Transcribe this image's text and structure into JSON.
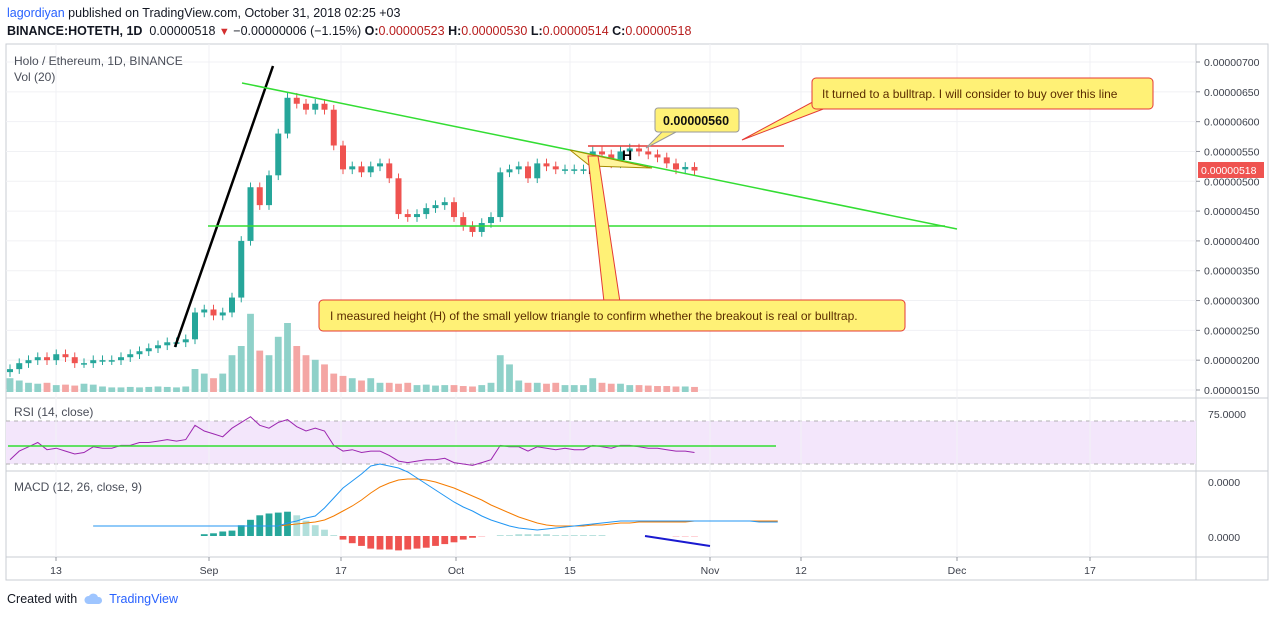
{
  "header": {
    "user": "lagordiyan",
    "published_text": "published on TradingView.com, October 31, 2018 02:25 +03"
  },
  "quote": {
    "symbol": "BINANCE:HOTETH, 1D",
    "last": "0.00000518",
    "arrow": "▼",
    "change": "−0.00000006 (−1.15%)",
    "o_label": "O:",
    "o": "0.00000523",
    "h_label": "H:",
    "h": "0.00000530",
    "l_label": "L:",
    "l": "0.00000514",
    "c_label": "C:",
    "c": "0.00000518"
  },
  "legend": {
    "title": "Holo / Ethereum, 1D, BINANCE",
    "vol": "Vol (20)",
    "rsi": "RSI (14, close)",
    "macd": "MACD (12, 26, close, 9)"
  },
  "annotations": {
    "top_right": "It turned to a bulltrap. I will consider to buy over this line",
    "price_flag": "0.00000560",
    "bottom": "I measured height (H) of the small yellow triangle to confirm whether the breakout is real or bulltrap."
  },
  "price_tag": "0.00000518",
  "footer": {
    "created_with": "Created with",
    "brand": "TradingView"
  },
  "colors": {
    "up": "#26a69a",
    "down": "#ef5350",
    "trend": "#33dd33",
    "rsi": "#9c27b0"
  },
  "chart_data": {
    "type": "line",
    "title": "Holo / Ethereum, 1D, BINANCE",
    "x_ticks": [
      "13",
      "Sep",
      "17",
      "Oct",
      "15",
      "Nov",
      "12",
      "Dec",
      "17"
    ],
    "price_axis_labels": [
      "0.00000700",
      "0.00000650",
      "0.00000600",
      "0.00000550",
      "0.00000500",
      "0.00000450",
      "0.00000400",
      "0.00000350",
      "0.00000300",
      "0.00000250",
      "0.00000200",
      "0.00000150"
    ],
    "price_ylim": [
      1.45e-06,
      7.2e-06
    ],
    "rsi_axis_labels": [
      "75.0000"
    ],
    "macd_axis_labels": [
      "0.0000",
      "0.0000"
    ],
    "close": [
      1.85,
      1.95,
      2.0,
      2.05,
      2.0,
      2.1,
      2.05,
      1.95,
      1.95,
      2.0,
      2.0,
      2.0,
      2.05,
      2.1,
      2.15,
      2.2,
      2.25,
      2.3,
      2.3,
      2.35,
      2.8,
      2.85,
      2.75,
      2.8,
      3.05,
      4.0,
      4.9,
      4.6,
      5.1,
      5.8,
      6.4,
      6.3,
      6.2,
      6.3,
      6.2,
      5.6,
      5.2,
      5.25,
      5.15,
      5.25,
      5.3,
      5.05,
      4.45,
      4.4,
      4.45,
      4.55,
      4.6,
      4.65,
      4.4,
      4.25,
      4.15,
      4.3,
      4.4,
      5.15,
      5.2,
      5.25,
      5.05,
      5.3,
      5.25,
      5.2,
      5.2,
      5.2,
      5.2,
      5.5,
      5.45,
      5.3,
      5.5,
      5.55,
      5.5,
      5.45,
      5.4,
      5.3,
      5.2,
      5.24,
      5.18
    ],
    "volume": [
      3,
      2.5,
      2,
      1.8,
      2,
      1.5,
      1.6,
      1.4,
      1.8,
      1.6,
      1.2,
      1.0,
      1.0,
      1.1,
      1.0,
      1.1,
      1.2,
      1.1,
      1.0,
      1.2,
      5,
      4,
      3,
      4,
      8,
      10,
      17,
      9,
      8,
      12,
      15,
      10,
      8,
      7,
      6,
      4,
      3.5,
      3,
      2.5,
      3,
      2,
      2,
      1.8,
      2,
      1.5,
      1.6,
      1.4,
      1.5,
      1.5,
      1.3,
      1.2,
      1.5,
      2.0,
      8,
      6,
      2.5,
      2,
      2,
      1.8,
      2,
      1.5,
      1.5,
      1.5,
      3,
      2,
      1.8,
      1.8,
      1.5,
      1.5,
      1.4,
      1.3,
      1.3,
      1.2,
      1.2,
      1.1
    ],
    "rsi": [
      48,
      54,
      57,
      60,
      55,
      56,
      54,
      52,
      53,
      57,
      56,
      56,
      58,
      58,
      60,
      60,
      61,
      62,
      61,
      62,
      72,
      68,
      66,
      64,
      70,
      74,
      78,
      72,
      70,
      74,
      76,
      71,
      68,
      70,
      68,
      58,
      54,
      55,
      53,
      54,
      54,
      51,
      47,
      46,
      47,
      48,
      48,
      49,
      46,
      45,
      44,
      46,
      48,
      58,
      57,
      57,
      54,
      57,
      56,
      55,
      56,
      55,
      55,
      58,
      57,
      56,
      58,
      58,
      57,
      56,
      56,
      55,
      54,
      54,
      53
    ],
    "macd_line": [
      0,
      0,
      0,
      0,
      0,
      0,
      0,
      0,
      0,
      0,
      0,
      0,
      0,
      0,
      0,
      0,
      0,
      0,
      0,
      0,
      0,
      0.03,
      0.05,
      0.08,
      0.1,
      0.18,
      0.28,
      0.38,
      0.45,
      0.52,
      0.6,
      0.62,
      0.6,
      0.58,
      0.54,
      0.48,
      0.42,
      0.36,
      0.3,
      0.24,
      0.19,
      0.15,
      0.1,
      0.06,
      0.03,
      0,
      -0.02,
      -0.03,
      -0.04,
      -0.03,
      -0.02,
      -0.01,
      0,
      0.01,
      0.02,
      0.03,
      0.04,
      0.05,
      0.05,
      0.05,
      0.05,
      0.05,
      0.05,
      0.05,
      0.05,
      0.05,
      0.05,
      0.05,
      0.05,
      0.05,
      0.05,
      0.05,
      0.04,
      0.04,
      0.04
    ],
    "macd_signal": [
      0,
      0,
      0,
      0,
      0,
      0,
      0,
      0,
      0,
      0,
      0,
      0,
      0,
      0,
      0,
      0,
      0,
      0,
      0,
      0,
      0,
      0.01,
      0.02,
      0.03,
      0.04,
      0.06,
      0.1,
      0.15,
      0.2,
      0.26,
      0.33,
      0.39,
      0.43,
      0.46,
      0.47,
      0.47,
      0.46,
      0.44,
      0.41,
      0.38,
      0.34,
      0.3,
      0.26,
      0.21,
      0.17,
      0.13,
      0.09,
      0.06,
      0.03,
      0.01,
      0,
      0,
      0,
      0,
      0.01,
      0.01,
      0.02,
      0.03,
      0.03,
      0.04,
      0.04,
      0.04,
      0.04,
      0.04,
      0.04,
      0.05,
      0.05,
      0.05,
      0.05,
      0.05,
      0.05,
      0.05,
      0.05,
      0.05,
      0.05
    ],
    "macd_hist_bars": 75,
    "support_level": 4.23e-06,
    "resistance_level": 5.6e-06
  }
}
